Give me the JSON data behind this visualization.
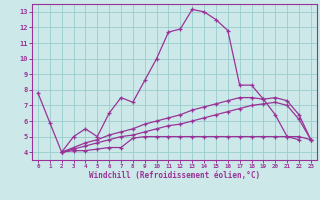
{
  "bg_color": "#cce8e8",
  "line_color": "#993399",
  "grid_color": "#99cccc",
  "xlabel": "Windchill (Refroidissement éolien,°C)",
  "xlim": [
    -0.5,
    23.5
  ],
  "ylim": [
    3.5,
    13.5
  ],
  "yticks": [
    4,
    5,
    6,
    7,
    8,
    9,
    10,
    11,
    12,
    13
  ],
  "xticks": [
    0,
    1,
    2,
    3,
    4,
    5,
    6,
    7,
    8,
    9,
    10,
    11,
    12,
    13,
    14,
    15,
    16,
    17,
    18,
    19,
    20,
    21,
    22,
    23
  ],
  "series": [
    {
      "x": [
        0,
        1,
        2,
        3,
        4,
        5,
        6,
        7,
        8,
        9,
        10,
        11,
        12,
        13,
        14,
        15,
        16,
        17,
        18,
        19,
        20,
        21,
        22
      ],
      "y": [
        7.8,
        5.9,
        4.0,
        5.0,
        5.5,
        5.0,
        6.5,
        7.5,
        7.2,
        8.6,
        10.0,
        11.7,
        11.9,
        13.15,
        13.0,
        12.5,
        11.8,
        8.3,
        8.3,
        7.4,
        6.4,
        5.0,
        4.8
      ]
    },
    {
      "x": [
        2,
        3,
        4,
        5,
        6,
        7,
        8,
        9,
        10,
        11,
        12,
        13,
        14,
        15,
        16,
        17,
        18,
        19,
        20,
        21,
        22,
        23
      ],
      "y": [
        4.0,
        4.3,
        4.6,
        4.8,
        5.1,
        5.3,
        5.5,
        5.8,
        6.0,
        6.2,
        6.4,
        6.7,
        6.9,
        7.1,
        7.3,
        7.5,
        7.5,
        7.4,
        7.5,
        7.3,
        6.4,
        4.8
      ]
    },
    {
      "x": [
        2,
        3,
        4,
        5,
        6,
        7,
        8,
        9,
        10,
        11,
        12,
        13,
        14,
        15,
        16,
        17,
        18,
        19,
        20,
        21,
        22,
        23
      ],
      "y": [
        4.0,
        4.2,
        4.4,
        4.6,
        4.8,
        5.0,
        5.1,
        5.3,
        5.5,
        5.7,
        5.8,
        6.0,
        6.2,
        6.4,
        6.6,
        6.8,
        7.0,
        7.1,
        7.2,
        7.0,
        6.1,
        4.8
      ]
    },
    {
      "x": [
        2,
        3,
        4,
        5,
        6,
        7,
        8,
        9,
        10,
        11,
        12,
        13,
        14,
        15,
        16,
        17,
        18,
        19,
        20,
        21,
        22,
        23
      ],
      "y": [
        4.0,
        4.1,
        4.1,
        4.2,
        4.3,
        4.3,
        4.9,
        5.0,
        5.0,
        5.0,
        5.0,
        5.0,
        5.0,
        5.0,
        5.0,
        5.0,
        5.0,
        5.0,
        5.0,
        5.0,
        5.0,
        4.8
      ]
    }
  ]
}
